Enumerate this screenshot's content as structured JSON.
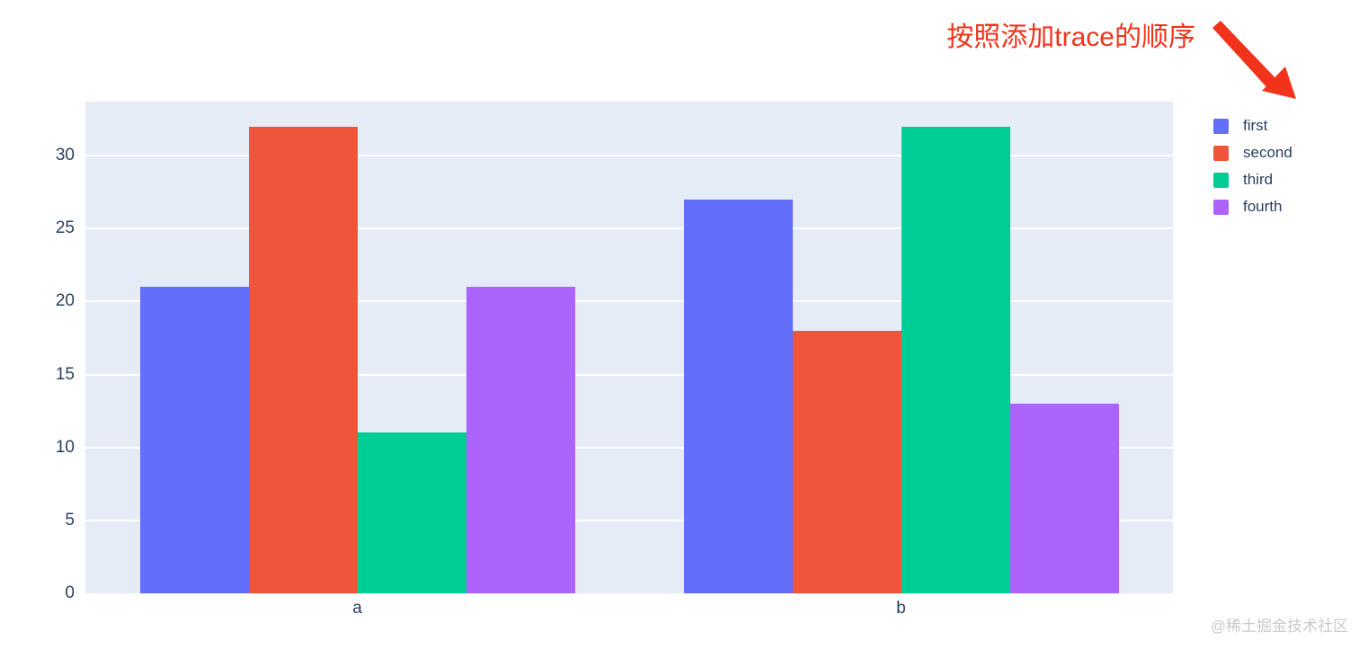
{
  "annotation": {
    "text": "按照添加trace的顺序",
    "color": "#f0331a"
  },
  "watermark": {
    "text": "@稀土掘金技术社区"
  },
  "chart_data": {
    "type": "bar",
    "barmode": "group",
    "categories": [
      "a",
      "b"
    ],
    "series": [
      {
        "name": "first",
        "color": "#636EFA",
        "values": [
          21,
          27
        ]
      },
      {
        "name": "second",
        "color": "#EF553B",
        "values": [
          32,
          18
        ]
      },
      {
        "name": "third",
        "color": "#00CC96",
        "values": [
          11,
          32
        ]
      },
      {
        "name": "fourth",
        "color": "#AB63FA",
        "values": [
          21,
          13
        ]
      }
    ],
    "title": "",
    "xlabel": "",
    "ylabel": "",
    "yticks": [
      0,
      5,
      10,
      15,
      20,
      25,
      30
    ],
    "ylim": [
      0,
      33.7
    ],
    "grid": true,
    "legend_position": "right",
    "plot_bg_color": "#E5ECF6",
    "grid_color": "#ffffff",
    "tick_label_color": "#2a3f5f"
  }
}
